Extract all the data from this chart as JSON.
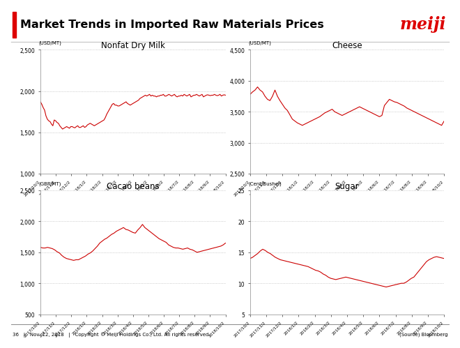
{
  "title": "Market Trends in Imported Raw Materials Prices",
  "title_bar_color": "#dd0000",
  "meiji_text": "meiji",
  "meiji_color": "#dd0000",
  "footer_left": "36   |   Nov. 12, 2018   |   Copyright © Meiji Holdings Co., Ltd. All rights reserved.",
  "footer_right": "(Source) Bloomberg",
  "line_color": "#cc0000",
  "grid_color": "#bbbbbb",
  "background_color": "#ffffff",
  "subplots": [
    {
      "title": "Nonfat Dry Milk",
      "unit": "(USD/MT)",
      "ylim": [
        1000,
        2500
      ],
      "yticks": [
        1000,
        1500,
        2000,
        2500
      ],
      "ytick_labels": [
        "1,000",
        "1,500",
        "2,000",
        "2,500"
      ],
      "xtick_labels": [
        "2017/10/2",
        "2017/11/2",
        "2017/12/2",
        "2018/1/2",
        "2018/2/2",
        "2018/3/2",
        "2018/4/2",
        "2018/5/2",
        "2018/6/2",
        "2018/7/2",
        "2018/8/2",
        "2018/9/2",
        "2018/10/2"
      ],
      "y_data": [
        1870,
        1840,
        1800,
        1770,
        1700,
        1660,
        1640,
        1630,
        1600,
        1580,
        1650,
        1640,
        1620,
        1610,
        1580,
        1560,
        1540,
        1550,
        1560,
        1570,
        1560,
        1550,
        1570,
        1570,
        1560,
        1555,
        1570,
        1580,
        1560,
        1560,
        1570,
        1580,
        1560,
        1570,
        1590,
        1600,
        1610,
        1600,
        1590,
        1580,
        1590,
        1600,
        1610,
        1620,
        1630,
        1640,
        1650,
        1680,
        1720,
        1750,
        1780,
        1810,
        1840,
        1850,
        1830,
        1830,
        1820,
        1820,
        1830,
        1840,
        1850,
        1860,
        1870,
        1850,
        1840,
        1830,
        1840,
        1850,
        1860,
        1870,
        1880,
        1890,
        1910,
        1920,
        1930,
        1940,
        1950,
        1940,
        1950,
        1960,
        1940,
        1950,
        1940,
        1940,
        1930,
        1940,
        1940,
        1950,
        1950,
        1960,
        1940,
        1940,
        1950,
        1960,
        1950,
        1940,
        1950,
        1960,
        1940,
        1930,
        1940,
        1940,
        1950,
        1940,
        1960,
        1950,
        1940,
        1950,
        1960,
        1930,
        1940,
        1950,
        1950,
        1960,
        1950,
        1940,
        1950,
        1960,
        1930,
        1940,
        1950,
        1955,
        1950,
        1945,
        1950,
        1950,
        1960,
        1950,
        1945,
        1950,
        1960,
        1940,
        1950,
        1955,
        1950
      ]
    },
    {
      "title": "Cheese",
      "unit": "(USD/MT)",
      "ylim": [
        2500,
        4500
      ],
      "yticks": [
        2500,
        3000,
        3500,
        4000,
        4500
      ],
      "ytick_labels": [
        "2,500",
        "3,000",
        "3,500",
        "4,000",
        "4,500"
      ],
      "xtick_labels": [
        "2017/10/2",
        "2017/11/2",
        "2017/12/2",
        "2018/1/2",
        "2018/2/2",
        "2018/3/2",
        "2018/4/2",
        "2018/5/2",
        "2018/6/2",
        "2018/7/2",
        "2018/8/2",
        "2018/9/2",
        "2018/10/2"
      ],
      "y_data": [
        3780,
        3820,
        3850,
        3900,
        3850,
        3820,
        3750,
        3700,
        3680,
        3750,
        3850,
        3750,
        3680,
        3620,
        3560,
        3520,
        3450,
        3380,
        3350,
        3320,
        3300,
        3280,
        3300,
        3320,
        3340,
        3360,
        3380,
        3400,
        3420,
        3450,
        3480,
        3500,
        3520,
        3540,
        3500,
        3480,
        3460,
        3440,
        3460,
        3480,
        3500,
        3520,
        3540,
        3560,
        3580,
        3560,
        3540,
        3520,
        3500,
        3480,
        3460,
        3440,
        3420,
        3440,
        3600,
        3650,
        3700,
        3680,
        3660,
        3650,
        3630,
        3610,
        3590,
        3560,
        3540,
        3520,
        3500,
        3480,
        3460,
        3440,
        3420,
        3400,
        3380,
        3360,
        3340,
        3320,
        3300,
        3280,
        3350
      ]
    },
    {
      "title": "Cacao beans",
      "unit": "(GBP/MT)",
      "ylim": [
        500,
        2500
      ],
      "yticks": [
        500,
        1000,
        1500,
        2000,
        2500
      ],
      "ytick_labels": [
        "500",
        "1,000",
        "1,500",
        "2,000",
        "2,500"
      ],
      "xtick_labels": [
        "2017/10/2",
        "2017/11/2",
        "2017/12/2",
        "2018/1/2",
        "2018/2/2",
        "2018/3/2",
        "2018/4/2",
        "2018/5/2",
        "2018/6/2",
        "2018/7/2",
        "2018/8/2",
        "2018/9/2",
        "2018/10/2"
      ],
      "y_data": [
        1580,
        1570,
        1570,
        1580,
        1570,
        1560,
        1540,
        1510,
        1490,
        1450,
        1420,
        1400,
        1390,
        1380,
        1370,
        1380,
        1380,
        1400,
        1420,
        1440,
        1470,
        1490,
        1520,
        1560,
        1600,
        1650,
        1680,
        1710,
        1730,
        1760,
        1790,
        1810,
        1840,
        1860,
        1880,
        1900,
        1870,
        1860,
        1840,
        1820,
        1810,
        1860,
        1900,
        1950,
        1900,
        1870,
        1840,
        1810,
        1780,
        1750,
        1720,
        1700,
        1680,
        1660,
        1620,
        1600,
        1580,
        1570,
        1570,
        1560,
        1550,
        1560,
        1570,
        1550,
        1540,
        1520,
        1500,
        1510,
        1520,
        1530,
        1540,
        1550,
        1560,
        1570,
        1580,
        1590,
        1600,
        1620,
        1650
      ]
    },
    {
      "title": "Sugar",
      "unit": "(Cent/Bushel)",
      "ylim": [
        5,
        25
      ],
      "yticks": [
        5,
        10,
        15,
        20,
        25
      ],
      "ytick_labels": [
        "5",
        "10",
        "15",
        "20",
        "25"
      ],
      "xtick_labels": [
        "2017/10/2",
        "2017/11/2",
        "2017/12/2",
        "2018/1/2",
        "2018/2/2",
        "2018/3/2",
        "2018/4/2",
        "2018/5/2",
        "2018/6/2",
        "2018/7/2",
        "2018/8/2",
        "2018/9/2",
        "2018/10/2"
      ],
      "y_data": [
        14.0,
        14.2,
        14.5,
        14.8,
        15.2,
        15.5,
        15.3,
        15.0,
        14.8,
        14.5,
        14.2,
        14.0,
        13.8,
        13.7,
        13.6,
        13.5,
        13.4,
        13.3,
        13.2,
        13.1,
        13.0,
        12.9,
        12.8,
        12.7,
        12.5,
        12.3,
        12.1,
        12.0,
        11.8,
        11.5,
        11.3,
        11.0,
        10.8,
        10.7,
        10.6,
        10.7,
        10.8,
        10.9,
        11.0,
        10.9,
        10.8,
        10.7,
        10.6,
        10.5,
        10.4,
        10.3,
        10.2,
        10.1,
        10.0,
        9.9,
        9.8,
        9.7,
        9.6,
        9.5,
        9.4,
        9.5,
        9.6,
        9.7,
        9.8,
        9.9,
        10.0,
        10.0,
        10.2,
        10.5,
        10.8,
        11.0,
        11.5,
        12.0,
        12.5,
        13.0,
        13.5,
        13.8,
        14.0,
        14.2,
        14.3,
        14.2,
        14.1,
        14.0
      ]
    }
  ]
}
